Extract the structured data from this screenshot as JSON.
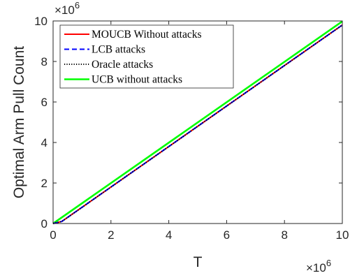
{
  "chart_data": {
    "type": "line",
    "xlabel": "T",
    "ylabel": "Optimal Arm Pull Count",
    "x_multiplier_base": "×10",
    "x_multiplier_exp": "6",
    "y_multiplier_base": "×10",
    "y_multiplier_exp": "6",
    "xlim": [
      0,
      10
    ],
    "ylim": [
      0,
      10
    ],
    "xticks": [
      "0",
      "2",
      "4",
      "6",
      "8",
      "10"
    ],
    "yticks": [
      "0",
      "2",
      "4",
      "6",
      "8",
      "10"
    ],
    "grid": false,
    "legend_location": "top-left",
    "series": [
      {
        "name": "MOUCB Without attacks",
        "color": "#ff0000",
        "style": "solid",
        "x": [
          0,
          0.3,
          10
        ],
        "y": [
          0,
          0.1,
          9.8
        ]
      },
      {
        "name": "LCB attacks",
        "color": "#0000ff",
        "style": "dashed",
        "x": [
          0,
          0.3,
          10
        ],
        "y": [
          0,
          0.1,
          9.8
        ]
      },
      {
        "name": "Oracle attacks",
        "color": "#000000",
        "style": "dotted",
        "x": [
          0,
          0.3,
          10
        ],
        "y": [
          0,
          0.1,
          9.8
        ]
      },
      {
        "name": "UCB without attacks",
        "color": "#00ff00",
        "style": "solid",
        "x": [
          0,
          10
        ],
        "y": [
          0,
          9.98
        ]
      }
    ]
  }
}
